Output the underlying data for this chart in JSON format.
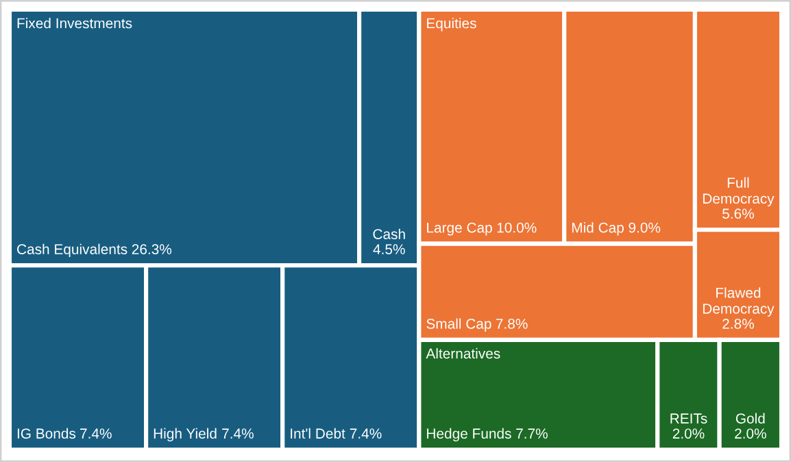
{
  "chart_data": {
    "type": "other",
    "categories": [
      "Cash Equivalents",
      "Cash",
      "IG Bonds",
      "High Yield",
      "Int'l Debt",
      "Large Cap",
      "Mid Cap",
      "Full Democracy",
      "Small Cap",
      "Flawed Democracy",
      "Hedge Funds",
      "REITs",
      "Gold"
    ],
    "values": [
      26.3,
      4.5,
      7.4,
      7.4,
      7.4,
      10.0,
      9.0,
      5.6,
      7.8,
      2.8,
      7.7,
      2.0,
      2.0
    ],
    "value_labels": [
      "26.3%",
      "4.5%",
      "7.4%",
      "7.4%",
      "7.4%",
      "10.0%",
      "9.0%",
      "5.6%",
      "7.8%",
      "2.8%",
      "7.7%",
      "2.0%",
      "2.0%"
    ],
    "colors": [
      "#185d80",
      "#185d80",
      "#185d80",
      "#185d80",
      "#185d80",
      "#ec7435",
      "#ec7435",
      "#ec7435",
      "#ec7435",
      "#ec7435",
      "#1c6a25",
      "#1c6a25",
      "#1c6a25"
    ],
    "annotations": [
      "Fixed Investments",
      "Equities",
      "Alternatives"
    ]
  }
}
